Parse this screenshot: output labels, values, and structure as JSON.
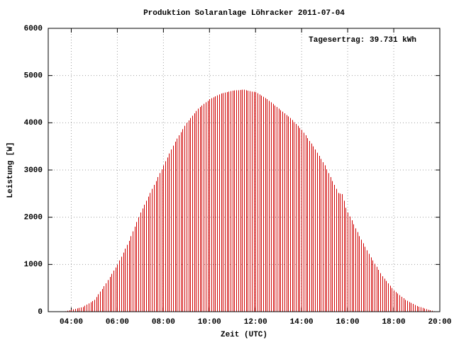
{
  "chart_data": {
    "type": "bar",
    "title": "Produktion Solaranlage Löhracker 2011-07-04",
    "annotation": "Tagesertrag: 39.731 kWh",
    "x_label": "Zeit (UTC)",
    "y_label": "Leistung [W]",
    "color": "#d00000",
    "grid": true,
    "xlim": [
      180,
      1200
    ],
    "xticks": [
      {
        "value": 240,
        "label": "04:00"
      },
      {
        "value": 360,
        "label": "06:00"
      },
      {
        "value": 480,
        "label": "08:00"
      },
      {
        "value": 600,
        "label": "10:00"
      },
      {
        "value": 720,
        "label": "12:00"
      },
      {
        "value": 840,
        "label": "14:00"
      },
      {
        "value": 960,
        "label": "16:00"
      },
      {
        "value": 1080,
        "label": "18:00"
      },
      {
        "value": 1200,
        "label": "20:00"
      }
    ],
    "ylim": [
      0,
      6000
    ],
    "yticks": [
      0,
      1000,
      2000,
      3000,
      4000,
      5000,
      6000
    ],
    "x": [
      225,
      230,
      235,
      240,
      245,
      250,
      255,
      260,
      265,
      270,
      275,
      280,
      285,
      290,
      295,
      300,
      305,
      310,
      315,
      320,
      325,
      330,
      335,
      340,
      345,
      350,
      355,
      360,
      365,
      370,
      375,
      380,
      385,
      390,
      395,
      400,
      405,
      410,
      415,
      420,
      425,
      430,
      435,
      440,
      445,
      450,
      455,
      460,
      465,
      470,
      475,
      480,
      485,
      490,
      495,
      500,
      505,
      510,
      515,
      520,
      525,
      530,
      535,
      540,
      545,
      550,
      555,
      560,
      565,
      570,
      575,
      580,
      585,
      590,
      595,
      600,
      605,
      610,
      615,
      620,
      625,
      630,
      635,
      640,
      645,
      650,
      655,
      660,
      665,
      670,
      675,
      680,
      685,
      690,
      695,
      700,
      705,
      710,
      715,
      720,
      725,
      730,
      735,
      740,
      745,
      750,
      755,
      760,
      765,
      770,
      775,
      780,
      785,
      790,
      795,
      800,
      805,
      810,
      815,
      820,
      825,
      830,
      835,
      840,
      845,
      850,
      855,
      860,
      865,
      870,
      875,
      880,
      885,
      890,
      895,
      900,
      905,
      910,
      915,
      920,
      925,
      930,
      935,
      940,
      945,
      950,
      955,
      960,
      965,
      970,
      975,
      980,
      985,
      990,
      995,
      1000,
      1005,
      1010,
      1015,
      1020,
      1025,
      1030,
      1035,
      1040,
      1045,
      1050,
      1055,
      1060,
      1065,
      1070,
      1075,
      1080,
      1085,
      1090,
      1095,
      1100,
      1105,
      1110,
      1115,
      1120,
      1125,
      1130,
      1135,
      1140,
      1145,
      1150,
      1155,
      1160,
      1165,
      1170,
      1175,
      1180,
      1185
    ],
    "values": [
      10,
      20,
      30,
      40,
      50,
      60,
      70,
      80,
      90,
      100,
      125,
      150,
      175,
      200,
      225,
      250,
      310,
      370,
      425,
      480,
      540,
      600,
      670,
      735,
      800,
      870,
      935,
      1000,
      1085,
      1165,
      1250,
      1335,
      1415,
      1500,
      1600,
      1700,
      1800,
      1900,
      2000,
      2100,
      2185,
      2265,
      2350,
      2435,
      2515,
      2600,
      2685,
      2765,
      2850,
      2935,
      3015,
      3100,
      3185,
      3265,
      3350,
      3435,
      3515,
      3600,
      3665,
      3735,
      3800,
      3865,
      3935,
      4000,
      4050,
      4100,
      4150,
      4200,
      4250,
      4300,
      4335,
      4365,
      4400,
      4435,
      4465,
      4500,
      4520,
      4540,
      4560,
      4580,
      4600,
      4620,
      4630,
      4640,
      4650,
      4660,
      4670,
      4680,
      4685,
      4690,
      4690,
      4695,
      4700,
      4700,
      4690,
      4680,
      4670,
      4660,
      4655,
      4650,
      4625,
      4600,
      4575,
      4550,
      4525,
      4500,
      4465,
      4435,
      4400,
      4365,
      4335,
      4300,
      4265,
      4235,
      4200,
      4165,
      4135,
      4100,
      4060,
      4015,
      3975,
      3935,
      3890,
      3850,
      3790,
      3735,
      3675,
      3615,
      3560,
      3500,
      3435,
      3365,
      3300,
      3235,
      3165,
      3100,
      3015,
      2935,
      2850,
      2765,
      2685,
      2600,
      2515,
      2500,
      2490,
      2350,
      2200,
      2100,
      2015,
      1935,
      1850,
      1765,
      1685,
      1600,
      1525,
      1450,
      1375,
      1300,
      1225,
      1150,
      1085,
      1015,
      950,
      885,
      815,
      750,
      700,
      650,
      600,
      550,
      500,
      450,
      415,
      385,
      350,
      315,
      285,
      250,
      230,
      205,
      185,
      165,
      140,
      120,
      105,
      95,
      80,
      65,
      55,
      40,
      30,
      20,
      10
    ]
  }
}
